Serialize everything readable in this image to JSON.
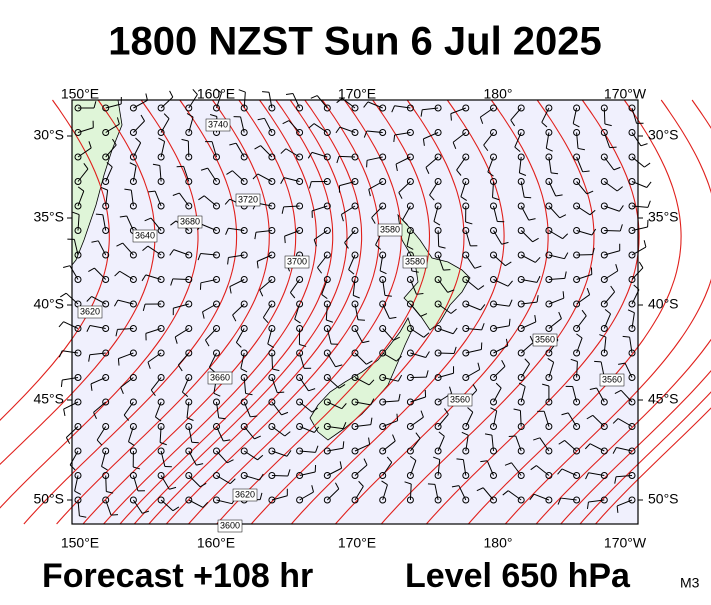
{
  "header": {
    "title": "1800 NZST Sun 6 Jul 2025"
  },
  "map": {
    "lon_labels": [
      "150°E",
      "160°E",
      "170°E",
      "180°",
      "170°W"
    ],
    "lat_labels": [
      "30°S",
      "35°S",
      "40°S",
      "45°S",
      "50°S"
    ],
    "contour_labels": [
      "3740",
      "3720",
      "3680",
      "3640",
      "3700",
      "3620",
      "3660",
      "3580",
      "3620",
      "3600",
      "3580",
      "3560",
      "3560",
      "3560"
    ]
  },
  "footer": {
    "forecast": "Forecast +108 hr",
    "level": "Level 650 hPa",
    "model": "M3"
  }
}
